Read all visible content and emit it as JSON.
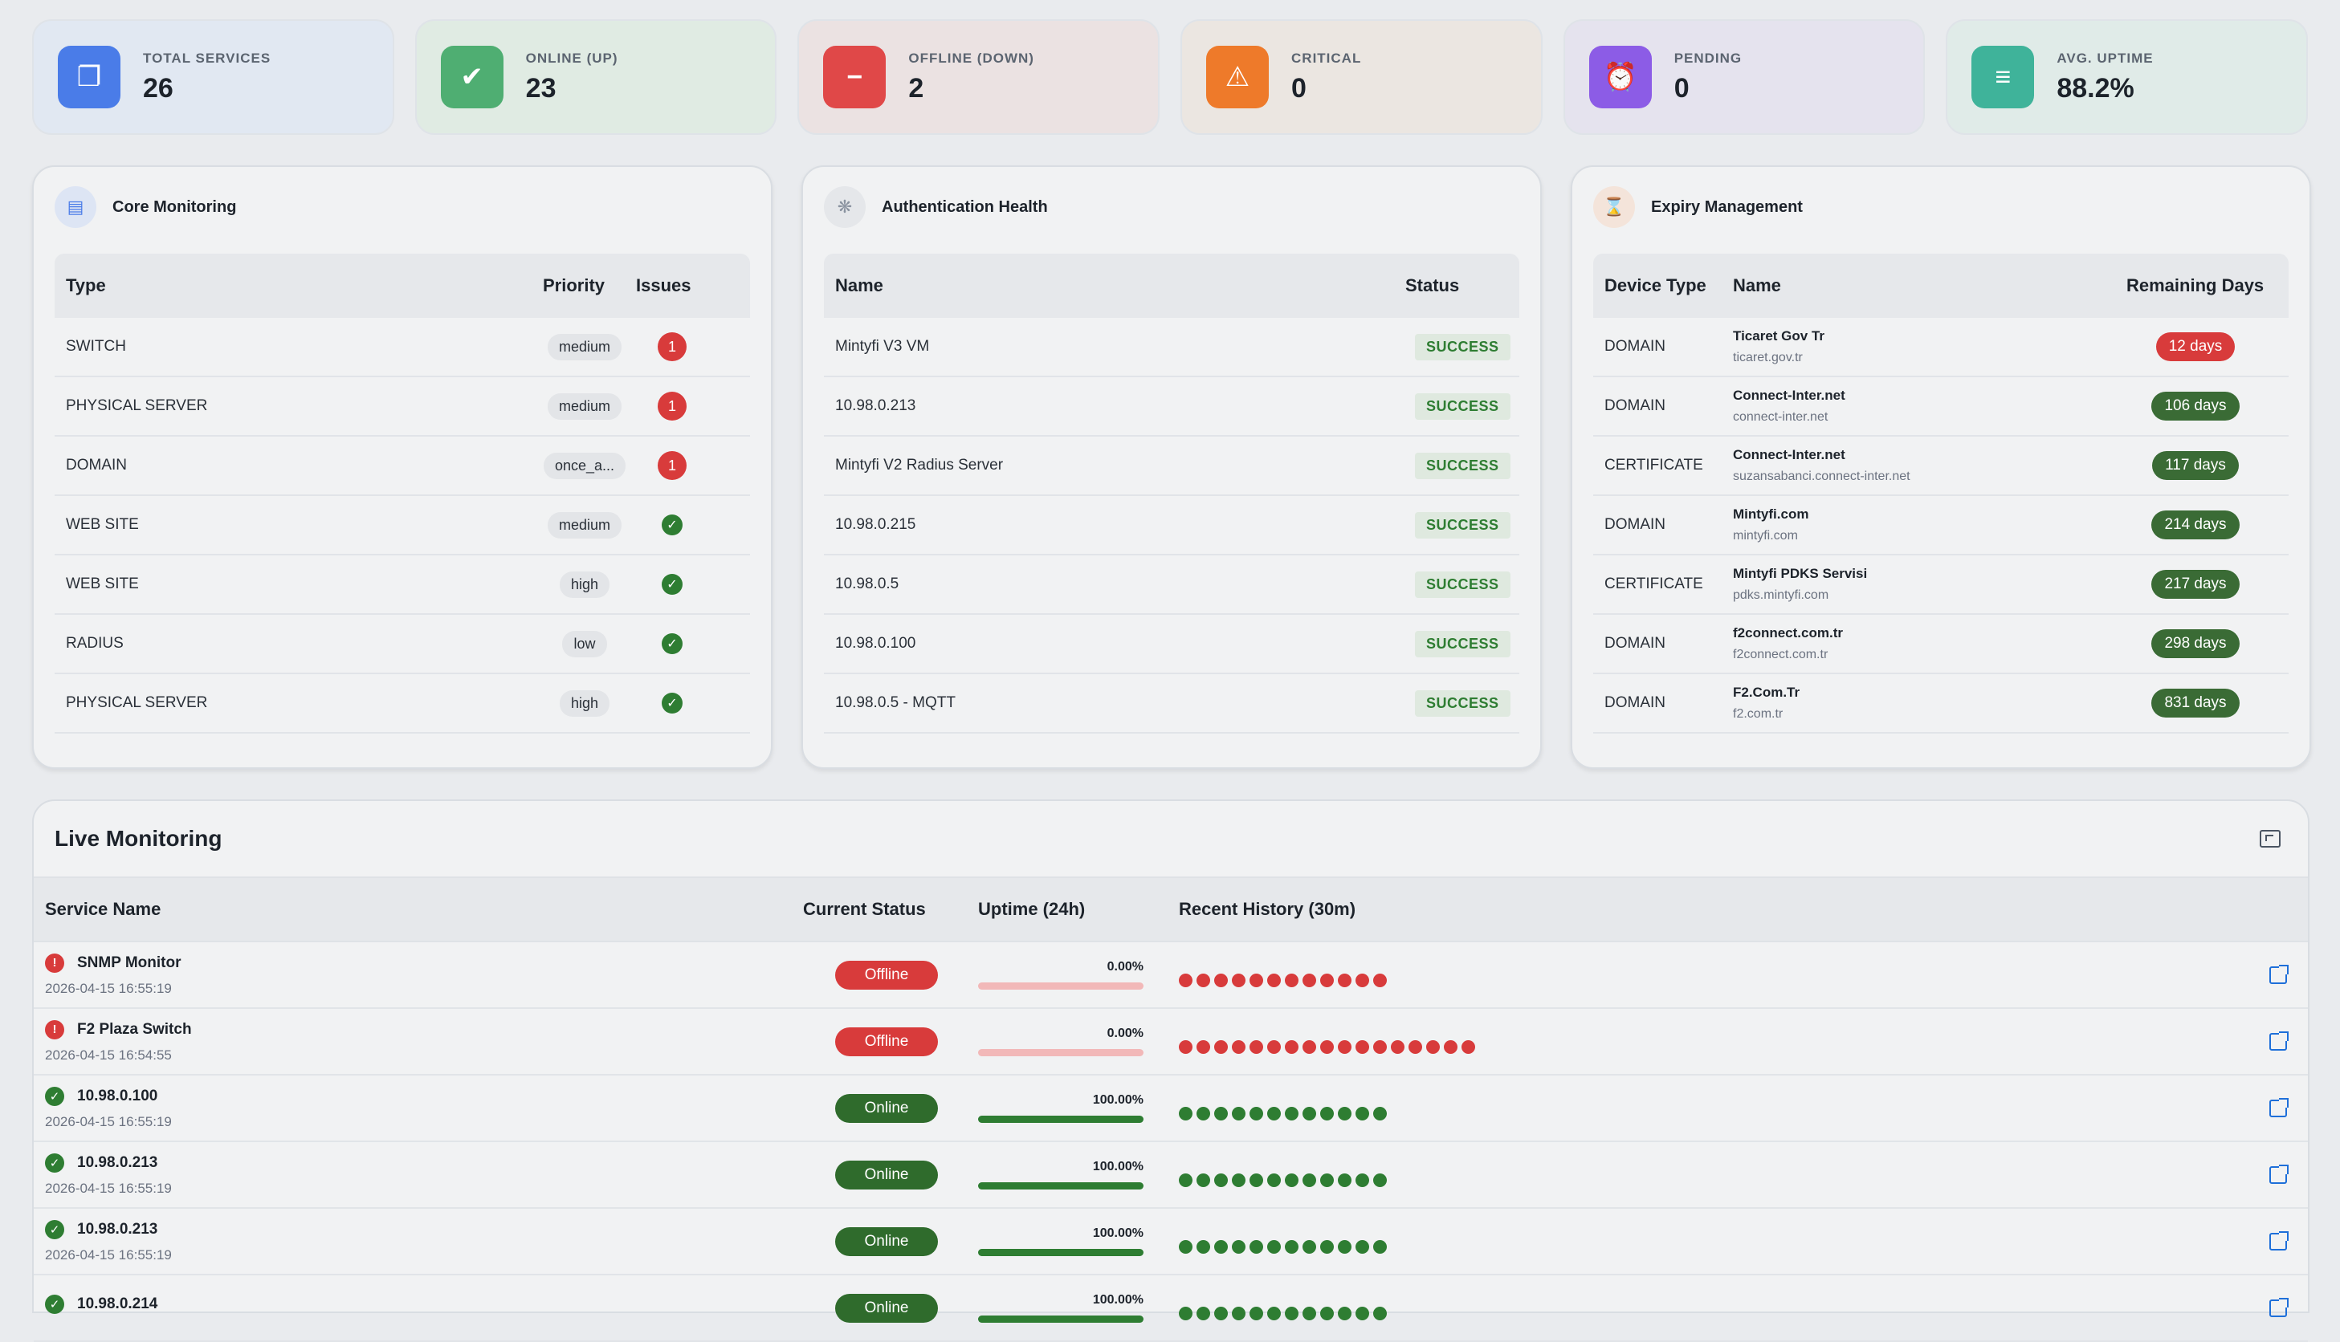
{
  "stats": [
    {
      "label": "TOTAL SERVICES",
      "value": "26",
      "icon": "copy-icon",
      "color": "#4a7ce8",
      "bg": "#e1e8f2"
    },
    {
      "label": "ONLINE (UP)",
      "value": "23",
      "icon": "check-icon",
      "color": "#4fae72",
      "bg": "#e0ebe3"
    },
    {
      "label": "OFFLINE (DOWN)",
      "value": "2",
      "icon": "minus-circle-icon",
      "color": "#e04848",
      "bg": "#ebe2e2"
    },
    {
      "label": "CRITICAL",
      "value": "0",
      "icon": "warning-icon",
      "color": "#ee7a2a",
      "bg": "#ebe6e1"
    },
    {
      "label": "PENDING",
      "value": "0",
      "icon": "alarm-icon",
      "color": "#8c5ce6",
      "bg": "#e5e3ee"
    },
    {
      "label": "AVG. UPTIME",
      "value": "88.2%",
      "icon": "clipboard-icon",
      "color": "#3fb39a",
      "bg": "#e0ebe8"
    }
  ],
  "core": {
    "title": "Core Monitoring",
    "headers": [
      "Type",
      "Priority",
      "Issues"
    ],
    "rows": [
      {
        "type": "SWITCH",
        "priority": "medium",
        "issues": "1"
      },
      {
        "type": "PHYSICAL SERVER",
        "priority": "medium",
        "issues": "1"
      },
      {
        "type": "DOMAIN",
        "priority": "once_a...",
        "issues": "1"
      },
      {
        "type": "WEB SITE",
        "priority": "medium",
        "issues": ""
      },
      {
        "type": "WEB SITE",
        "priority": "high",
        "issues": ""
      },
      {
        "type": "RADIUS",
        "priority": "low",
        "issues": ""
      },
      {
        "type": "PHYSICAL SERVER",
        "priority": "high",
        "issues": ""
      }
    ]
  },
  "auth": {
    "title": "Authentication Health",
    "headers": [
      "Name",
      "Status"
    ],
    "rows": [
      {
        "name": "Mintyfi V3 VM",
        "status": "SUCCESS"
      },
      {
        "name": "10.98.0.213",
        "status": "SUCCESS"
      },
      {
        "name": "Mintyfi V2 Radius Server",
        "status": "SUCCESS"
      },
      {
        "name": "10.98.0.215",
        "status": "SUCCESS"
      },
      {
        "name": "10.98.0.5",
        "status": "SUCCESS"
      },
      {
        "name": "10.98.0.100",
        "status": "SUCCESS"
      },
      {
        "name": "10.98.0.5 - MQTT",
        "status": "SUCCESS"
      }
    ]
  },
  "expiry": {
    "title": "Expiry Management",
    "headers": [
      "Device Type",
      "Name",
      "Remaining Days"
    ],
    "rows": [
      {
        "type": "DOMAIN",
        "name": "Ticaret Gov Tr",
        "host": "ticaret.gov.tr",
        "days": "12 days",
        "urgent": true
      },
      {
        "type": "DOMAIN",
        "name": "Connect-Inter.net",
        "host": "connect-inter.net",
        "days": "106 days",
        "urgent": false
      },
      {
        "type": "CERTIFICATE",
        "name": "Connect-Inter.net",
        "host": "suzansabanci.connect-inter.net",
        "days": "117 days",
        "urgent": false
      },
      {
        "type": "DOMAIN",
        "name": "Mintyfi.com",
        "host": "mintyfi.com",
        "days": "214 days",
        "urgent": false
      },
      {
        "type": "CERTIFICATE",
        "name": "Mintyfi PDKS Servisi",
        "host": "pdks.mintyfi.com",
        "days": "217 days",
        "urgent": false
      },
      {
        "type": "DOMAIN",
        "name": "f2connect.com.tr",
        "host": "f2connect.com.tr",
        "days": "298 days",
        "urgent": false
      },
      {
        "type": "DOMAIN",
        "name": "F2.Com.Tr",
        "host": "f2.com.tr",
        "days": "831 days",
        "urgent": false
      }
    ]
  },
  "live": {
    "title": "Live Monitoring",
    "headers": [
      "Service Name",
      "Current Status",
      "Uptime (24h)",
      "Recent History (30m)"
    ],
    "rows": [
      {
        "name": "SNMP Monitor",
        "time": "2026-04-15 16:55:19",
        "status": "Offline",
        "up": false,
        "uptime": "0.00%",
        "uptime_value": 0,
        "history_count": 12
      },
      {
        "name": "F2 Plaza Switch",
        "time": "2026-04-15 16:54:55",
        "status": "Offline",
        "up": false,
        "uptime": "0.00%",
        "uptime_value": 0,
        "history_count": 17
      },
      {
        "name": "10.98.0.100",
        "time": "2026-04-15 16:55:19",
        "status": "Online",
        "up": true,
        "uptime": "100.00%",
        "uptime_value": 100,
        "history_count": 12
      },
      {
        "name": "10.98.0.213",
        "time": "2026-04-15 16:55:19",
        "status": "Online",
        "up": true,
        "uptime": "100.00%",
        "uptime_value": 100,
        "history_count": 12
      },
      {
        "name": "10.98.0.213",
        "time": "2026-04-15 16:55:19",
        "status": "Online",
        "up": true,
        "uptime": "100.00%",
        "uptime_value": 100,
        "history_count": 12
      },
      {
        "name": "10.98.0.214",
        "time": "",
        "status": "Online",
        "up": true,
        "uptime": "100.00%",
        "uptime_value": 100,
        "history_count": 12
      }
    ]
  },
  "colors": {
    "green": "#2e7d32",
    "red": "#d83b3b",
    "red_light": "#f2b8b8",
    "green_pill": "#2f6b2c"
  }
}
